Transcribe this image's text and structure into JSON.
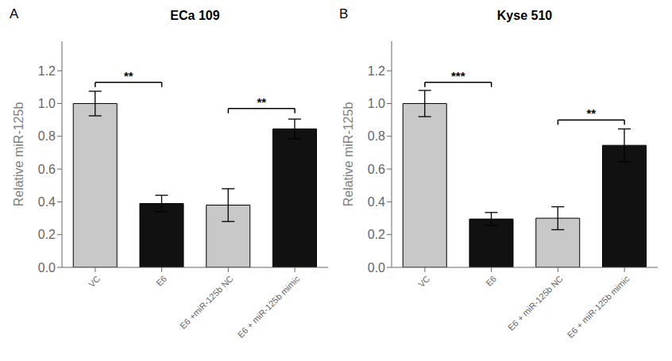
{
  "chart_data": [
    {
      "type": "bar",
      "title": "ECa 109",
      "panel_label": "A",
      "categories": [
        "VC",
        "E6",
        "E6 +miR-125b NC",
        "E6 + miR-125b mimic"
      ],
      "values": [
        1.0,
        0.39,
        0.38,
        0.845
      ],
      "errors": [
        0.075,
        0.05,
        0.1,
        0.06
      ],
      "colors": [
        "#c8c8c8",
        "#111111",
        "#c8c8c8",
        "#111111"
      ],
      "ylabel": "Relative miR-125b",
      "ylim": [
        0,
        1.38
      ],
      "yticks": [
        {
          "value": 0,
          "label": "0.0"
        },
        0.2,
        0.4,
        0.6,
        0.8,
        {
          "value": 1,
          "label": "1.0"
        },
        1.2
      ],
      "annotations": [
        {
          "x1": "VC",
          "x2": "E6",
          "y": 1.13,
          "label": "**"
        },
        {
          "x1": "E6 +miR-125b NC",
          "x2": "E6 + miR-125b mimic",
          "y": 0.97,
          "label": "**"
        }
      ]
    },
    {
      "type": "bar",
      "title": "Kyse 510",
      "panel_label": "B",
      "categories": [
        "VC",
        "E6",
        "E6 + miR-125b NC",
        "E6 + miR-125b mimic"
      ],
      "values": [
        1.0,
        0.295,
        0.3,
        0.745
      ],
      "errors": [
        0.08,
        0.04,
        0.07,
        0.1
      ],
      "colors": [
        "#c8c8c8",
        "#111111",
        "#c8c8c8",
        "#111111"
      ],
      "ylabel": "Relative miR-125b",
      "ylim": [
        0,
        1.38
      ],
      "yticks": [
        {
          "value": 0,
          "label": "0.0"
        },
        0.2,
        0.4,
        0.6,
        0.8,
        {
          "value": 1,
          "label": "1.0"
        },
        1.2
      ],
      "annotations": [
        {
          "x1": "VC",
          "x2": "E6",
          "y": 1.13,
          "label": "***"
        },
        {
          "x1": "E6 + miR-125b NC",
          "x2": "E6 + miR-125b mimic",
          "y": 0.9,
          "label": "**"
        }
      ]
    }
  ]
}
